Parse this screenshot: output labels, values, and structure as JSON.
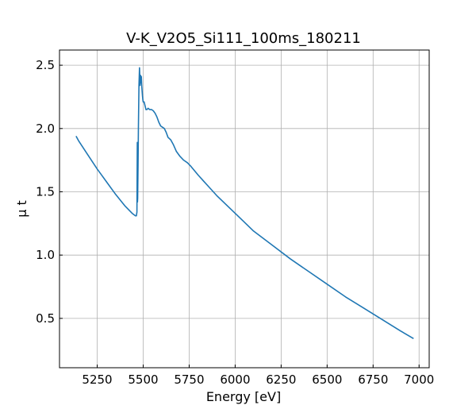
{
  "chart_data": {
    "type": "line",
    "title": "V-K_V2O5_Si111_100ms_180211",
    "xlabel": "Energy [eV]",
    "ylabel": "μ t",
    "xlim": [
      5045,
      7055
    ],
    "ylim": [
      0.11,
      2.62
    ],
    "xticks": [
      5250,
      5500,
      5750,
      6000,
      6250,
      6500,
      6750,
      7000
    ],
    "xtick_labels": [
      "5250",
      "5500",
      "5750",
      "6000",
      "6250",
      "6500",
      "6750",
      "7000"
    ],
    "yticks": [
      0.5,
      1.0,
      1.5,
      2.0,
      2.5
    ],
    "ytick_labels": [
      "0.5",
      "1.0",
      "1.5",
      "2.0",
      "2.5"
    ],
    "grid": true,
    "ticks_direction": "in",
    "series": [
      {
        "color": "#1f77b4",
        "x": [
          5135,
          5150,
          5200,
          5250,
          5300,
          5350,
          5400,
          5440,
          5458,
          5463,
          5466,
          5468,
          5469,
          5470,
          5472,
          5474,
          5477,
          5480,
          5483,
          5486,
          5488,
          5490,
          5492,
          5494,
          5496,
          5498,
          5500,
          5505,
          5510,
          5515,
          5520,
          5527,
          5535,
          5545,
          5555,
          5565,
          5575,
          5585,
          5595,
          5605,
          5615,
          5625,
          5635,
          5650,
          5665,
          5680,
          5700,
          5720,
          5740,
          5760,
          5800,
          5850,
          5900,
          5950,
          6000,
          6050,
          6100,
          6200,
          6300,
          6400,
          6500,
          6600,
          6700,
          6800,
          6900,
          6970
        ],
        "y": [
          1.94,
          1.9,
          1.79,
          1.68,
          1.58,
          1.48,
          1.39,
          1.33,
          1.31,
          1.31,
          1.34,
          1.89,
          1.42,
          1.45,
          1.7,
          2.0,
          2.34,
          2.48,
          2.34,
          2.42,
          2.36,
          2.41,
          2.34,
          2.3,
          2.26,
          2.23,
          2.21,
          2.21,
          2.18,
          2.15,
          2.15,
          2.16,
          2.15,
          2.15,
          2.14,
          2.12,
          2.09,
          2.05,
          2.02,
          2.01,
          2.0,
          1.97,
          1.93,
          1.91,
          1.87,
          1.82,
          1.78,
          1.75,
          1.73,
          1.7,
          1.63,
          1.55,
          1.47,
          1.4,
          1.33,
          1.26,
          1.19,
          1.08,
          0.97,
          0.87,
          0.77,
          0.67,
          0.58,
          0.49,
          0.4,
          0.34
        ]
      }
    ]
  }
}
